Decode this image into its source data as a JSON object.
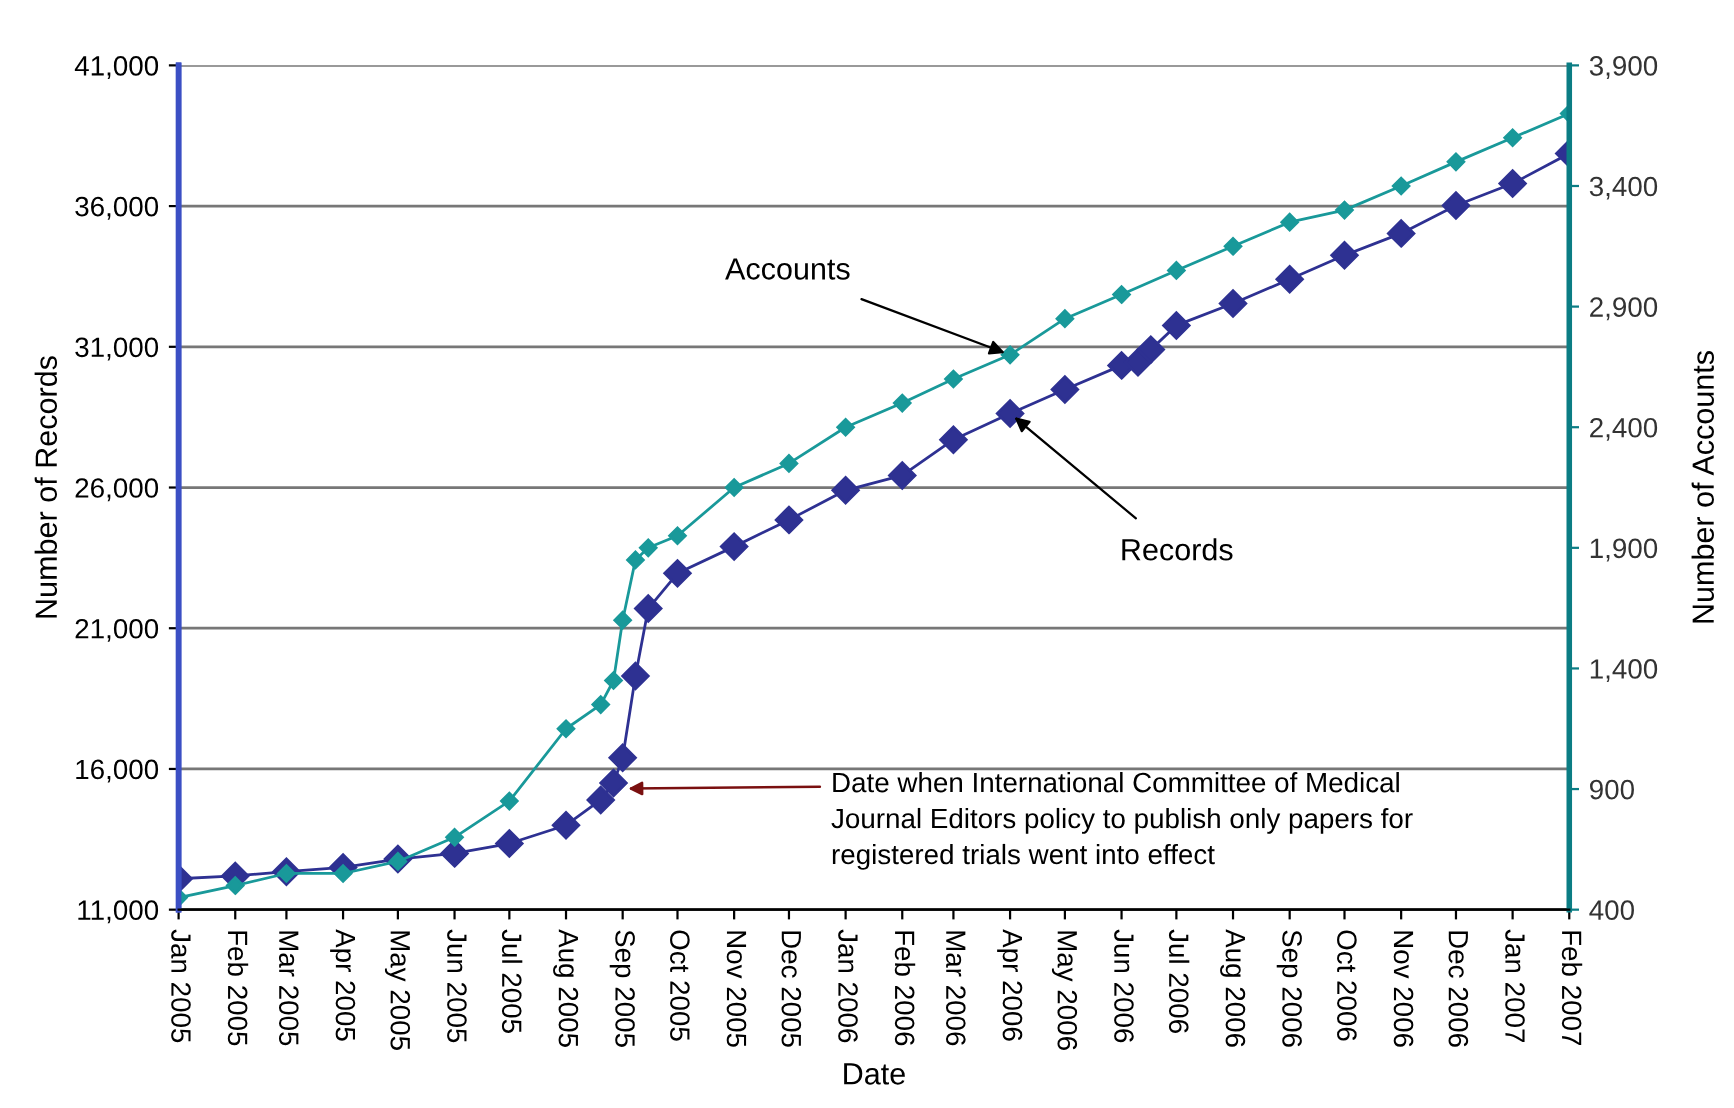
{
  "chart_data": {
    "type": "line",
    "xlabel": "Date",
    "ylabel": "Number of Records",
    "y2label": "Number of Accounts",
    "marker": "diamond",
    "line_style": "solid",
    "grid": "y",
    "legend": false,
    "xlim": [
      "2005-01-01",
      "2007-02-01"
    ],
    "xticks": [
      {
        "value": "2005-01-01",
        "label": "Jan 2005"
      },
      {
        "value": "2005-02-01",
        "label": "Feb 2005"
      },
      {
        "value": "2005-03-01",
        "label": "Mar 2005"
      },
      {
        "value": "2005-04-01",
        "label": "Apr 2005"
      },
      {
        "value": "2005-05-01",
        "label": "May 2005"
      },
      {
        "value": "2005-06-01",
        "label": "Jun 2005"
      },
      {
        "value": "2005-07-01",
        "label": "Jul 2005"
      },
      {
        "value": "2005-08-01",
        "label": "Aug 2005"
      },
      {
        "value": "2005-09-01",
        "label": "Sep 2005"
      },
      {
        "value": "2005-10-01",
        "label": "Oct 2005"
      },
      {
        "value": "2005-11-01",
        "label": "Nov 2005"
      },
      {
        "value": "2005-12-01",
        "label": "Dec 2005"
      },
      {
        "value": "2006-01-01",
        "label": "Jan 2006"
      },
      {
        "value": "2006-02-01",
        "label": "Feb 2006"
      },
      {
        "value": "2006-03-01",
        "label": "Mar 2006"
      },
      {
        "value": "2006-04-01",
        "label": "Apr 2006"
      },
      {
        "value": "2006-05-01",
        "label": "May 2006"
      },
      {
        "value": "2006-06-01",
        "label": "Jun 2006"
      },
      {
        "value": "2006-07-01",
        "label": "Jul 2006"
      },
      {
        "value": "2006-08-01",
        "label": "Aug 2006"
      },
      {
        "value": "2006-09-01",
        "label": "Sep 2006"
      },
      {
        "value": "2006-10-01",
        "label": "Oct 2006"
      },
      {
        "value": "2006-11-01",
        "label": "Nov 2006"
      },
      {
        "value": "2006-12-01",
        "label": "Dec 2006"
      },
      {
        "value": "2007-01-01",
        "label": "Jan 2007"
      },
      {
        "value": "2007-02-01",
        "label": "Feb 2007"
      }
    ],
    "ylim": [
      11000,
      41000
    ],
    "yticks": [
      {
        "value": 11000,
        "label": "11,000"
      },
      {
        "value": 16000,
        "label": "16,000"
      },
      {
        "value": 21000,
        "label": "21,000"
      },
      {
        "value": 26000,
        "label": "26,000"
      },
      {
        "value": 31000,
        "label": "31,000"
      },
      {
        "value": 36000,
        "label": "36,000"
      },
      {
        "value": 41000,
        "label": "41,000"
      }
    ],
    "y2lim": [
      400,
      3900
    ],
    "y2ticks": [
      400,
      900,
      {
        "value": 1400,
        "label": "1,400"
      },
      {
        "value": 1900,
        "label": "1,900"
      },
      {
        "value": 2400,
        "label": "2,400"
      },
      {
        "value": 2900,
        "label": "2,900"
      },
      {
        "value": 3400,
        "label": "3,400"
      },
      {
        "value": 3900,
        "label": "3,900"
      }
    ],
    "series": [
      {
        "name": "Records",
        "color": "#2e3192",
        "x": [
          "2005-01-01",
          "2005-02-01",
          "2005-03-01",
          "2005-04-01",
          "2005-05-01",
          "2005-06-01",
          "2005-07-01",
          "2005-08-01",
          "2005-08-20",
          "2005-08-27",
          "2005-09-01",
          "2005-09-08",
          "2005-09-15",
          "2005-10-01",
          "2005-11-01",
          "2005-12-01",
          "2006-01-01",
          "2006-02-01",
          "2006-03-01",
          "2006-04-01",
          "2006-05-01",
          "2006-06-01",
          "2006-06-10",
          "2006-06-17",
          "2006-07-01",
          "2006-08-01",
          "2006-09-01",
          "2006-10-01",
          "2006-11-01",
          "2006-12-01",
          "2007-01-01",
          "2007-02-01"
        ],
        "values": [
          12100,
          12200,
          12350,
          12500,
          12800,
          13000,
          13350,
          14000,
          14900,
          15500,
          16400,
          19300,
          21700,
          22950,
          23900,
          24850,
          25900,
          26430,
          27700,
          28630,
          29480,
          30340,
          30450,
          30900,
          31760,
          32540,
          33400,
          34250,
          35030,
          36020,
          36800,
          37870
        ]
      },
      {
        "name": "Accounts",
        "color": "#19999a",
        "axis": "y2",
        "x": [
          "2005-01-01",
          "2005-02-01",
          "2005-03-01",
          "2005-04-01",
          "2005-05-01",
          "2005-06-01",
          "2005-07-01",
          "2005-08-01",
          "2005-08-20",
          "2005-08-27",
          "2005-09-01",
          "2005-09-08",
          "2005-09-15",
          "2005-10-01",
          "2005-11-01",
          "2005-12-01",
          "2006-01-01",
          "2006-02-01",
          "2006-03-01",
          "2006-04-01",
          "2006-05-01",
          "2006-06-01",
          "2006-07-01",
          "2006-08-01",
          "2006-09-01",
          "2006-10-01",
          "2006-11-01",
          "2006-12-01",
          "2007-01-01",
          "2007-02-01"
        ],
        "values": [
          450,
          500,
          550,
          550,
          600,
          700,
          850,
          1150,
          1250,
          1350,
          1600,
          1850,
          1900,
          1950,
          2150,
          2250,
          2400,
          2500,
          2600,
          2700,
          2850,
          2950,
          3050,
          3150,
          3250,
          3300,
          3400,
          3500,
          3600,
          3700
        ]
      }
    ],
    "annotations": [
      {
        "text": "Date when International Committee of Medical\nJournal Editors policy to publish only papers for\nregistered trials went into effect",
        "x": "2005-09-01",
        "y": 15300
      }
    ]
  }
}
